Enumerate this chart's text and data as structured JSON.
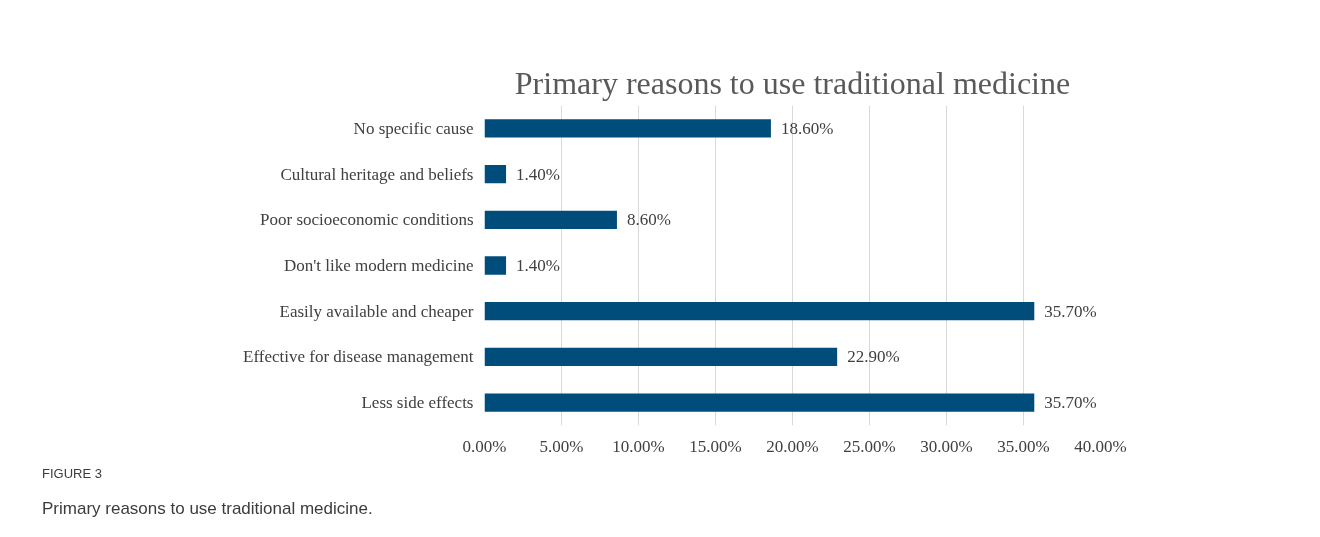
{
  "chart_data": {
    "type": "bar",
    "orientation": "horizontal",
    "title": "Primary reasons to use traditional medicine",
    "categories": [
      "No specific cause",
      "Cultural heritage and beliefs",
      "Poor socioeconomic conditions",
      "Don't like modern medicine",
      "Easily available and cheaper",
      "Effective for disease management",
      "Less side effects"
    ],
    "values": [
      18.6,
      1.4,
      8.6,
      1.4,
      35.7,
      22.9,
      35.7
    ],
    "value_labels": [
      "18.60%",
      "1.40%",
      "8.60%",
      "1.40%",
      "35.70%",
      "22.90%",
      "35.70%"
    ],
    "color": "#004c7a",
    "xlim": [
      0,
      40
    ],
    "xticks": [
      {
        "value": 0,
        "label": "0.00%"
      },
      {
        "value": 5,
        "label": "5.00%"
      },
      {
        "value": 10,
        "label": "10.00%"
      },
      {
        "value": 15,
        "label": "15.00%"
      },
      {
        "value": 20,
        "label": "20.00%"
      },
      {
        "value": 25,
        "label": "25.00%"
      },
      {
        "value": 30,
        "label": "30.00%"
      },
      {
        "value": 35,
        "label": "35.00%"
      },
      {
        "value": 40,
        "label": "40.00%"
      }
    ],
    "grid": "x",
    "annotations": [
      "FIGURE 3",
      "Primary reasons to use traditional medicine."
    ]
  }
}
